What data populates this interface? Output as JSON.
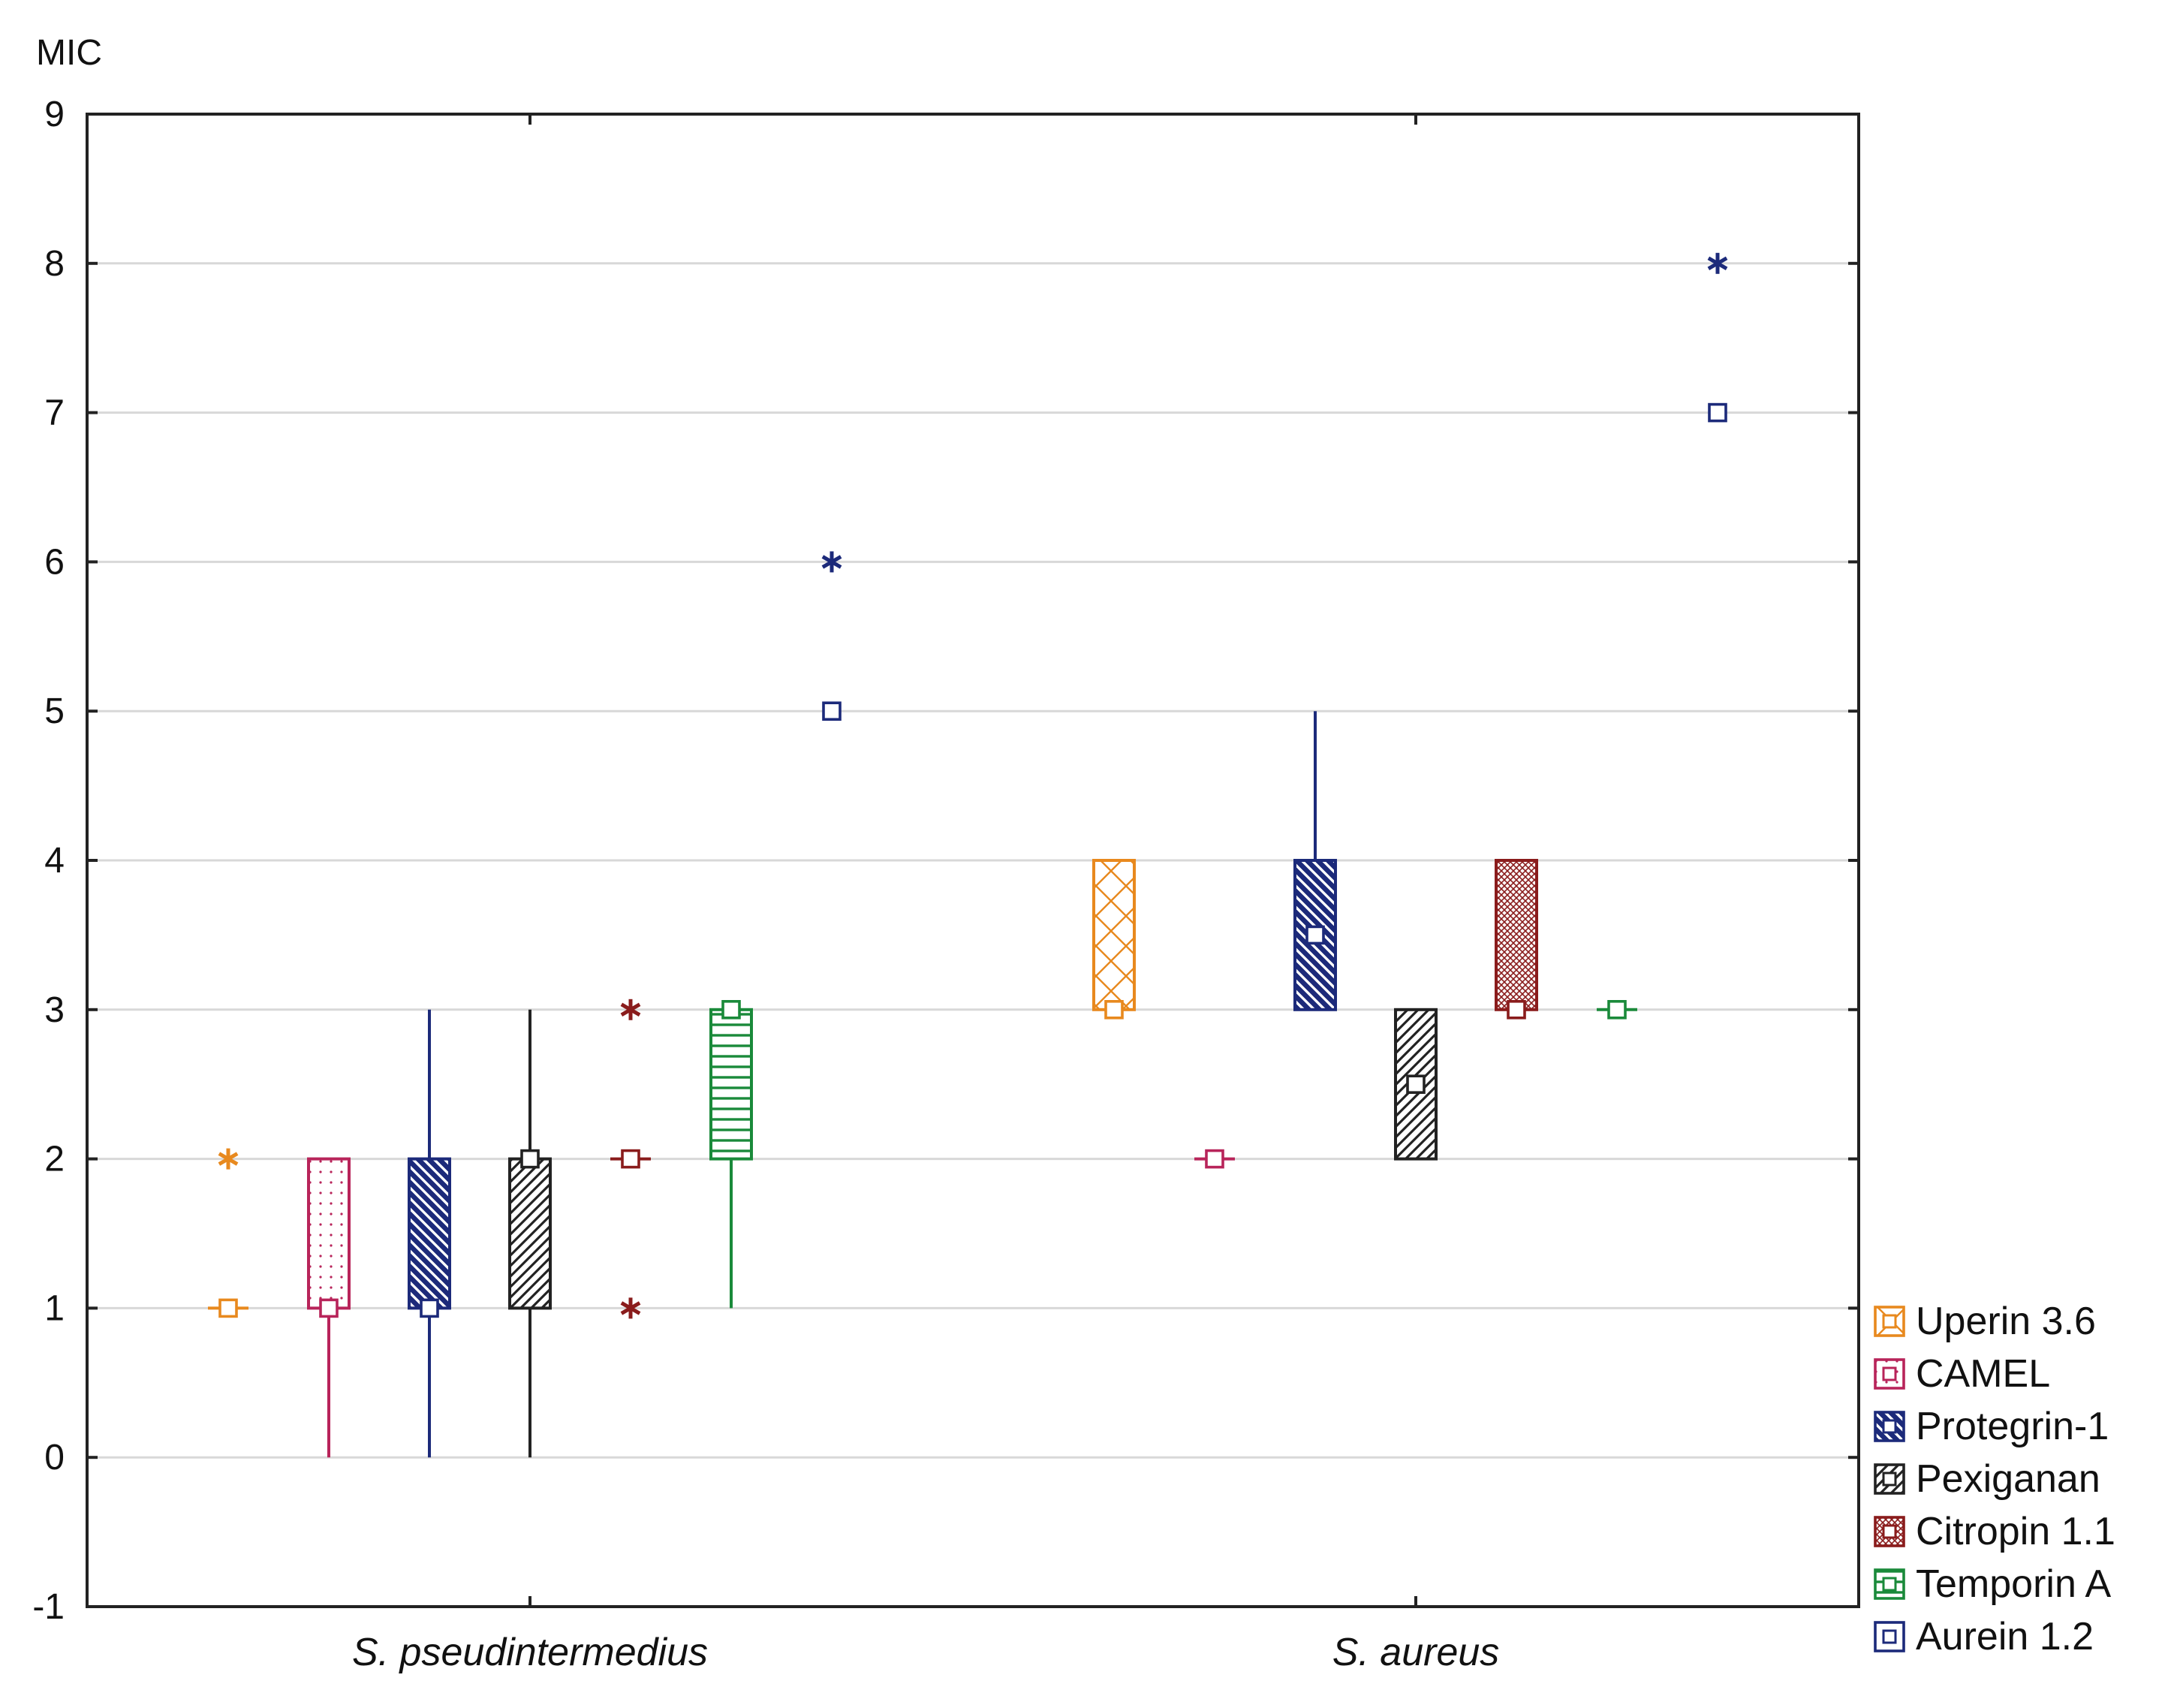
{
  "chart_data": {
    "type": "box",
    "ylabel": "MIC",
    "ylim": [
      -1,
      9
    ],
    "yticks": [
      "9",
      "8",
      "7",
      "6",
      "5",
      "4",
      "3",
      "2",
      "1",
      "0",
      "-1"
    ],
    "categories": [
      "S. pseudintermedius",
      "S. aureus"
    ],
    "series": [
      {
        "name": "Uperin 3.6",
        "color": "#e8891e",
        "pattern": "crosshatch",
        "stats": [
          {
            "q1": 1,
            "q3": 1,
            "median": 1,
            "min": 1,
            "max": 1,
            "extremes": [
              2
            ]
          },
          {
            "q1": 3,
            "q3": 4,
            "median": 3,
            "min": 3,
            "max": 4,
            "extremes": []
          }
        ]
      },
      {
        "name": "CAMEL",
        "color": "#b8245a",
        "pattern": "dots",
        "stats": [
          {
            "q1": 1,
            "q3": 2,
            "median": 1,
            "min": 0,
            "max": 2,
            "extremes": []
          },
          {
            "q1": 2,
            "q3": 2,
            "median": 2,
            "min": 2,
            "max": 2,
            "extremes": []
          }
        ]
      },
      {
        "name": "Protegrin-1",
        "color": "#1c2a7a",
        "pattern": "diag-back",
        "stats": [
          {
            "q1": 1,
            "q3": 2,
            "median": 1,
            "min": 0,
            "max": 3,
            "extremes": []
          },
          {
            "q1": 3,
            "q3": 4,
            "median": 3.5,
            "min": 3,
            "max": 5,
            "extremes": []
          }
        ]
      },
      {
        "name": "Pexiganan",
        "color": "#222222",
        "pattern": "diag-fwd",
        "stats": [
          {
            "q1": 1,
            "q3": 2,
            "median": 2,
            "min": 0,
            "max": 3,
            "extremes": []
          },
          {
            "q1": 2,
            "q3": 3,
            "median": 2.5,
            "min": 2,
            "max": 3,
            "extremes": []
          }
        ]
      },
      {
        "name": "Citropin 1.1",
        "color": "#8a1c1c",
        "pattern": "fine-cross",
        "stats": [
          {
            "q1": 2,
            "q3": 2,
            "median": 2,
            "min": 2,
            "max": 2,
            "extremes": [
              3,
              1
            ]
          },
          {
            "q1": 3,
            "q3": 4,
            "median": 3,
            "min": 3,
            "max": 4,
            "extremes": []
          }
        ]
      },
      {
        "name": "Temporin A",
        "color": "#1a8a3a",
        "pattern": "horizontal",
        "stats": [
          {
            "q1": 2,
            "q3": 3,
            "median": 3,
            "min": 1,
            "max": 3,
            "extremes": []
          },
          {
            "q1": 3,
            "q3": 3,
            "median": 3,
            "min": 3,
            "max": 3,
            "extremes": []
          }
        ]
      },
      {
        "name": "Aurein 1.2",
        "color": "#1c2a7a",
        "pattern": "none",
        "stats": [
          {
            "q1": 5,
            "q3": 5,
            "median": 5,
            "min": 5,
            "max": 5,
            "extremes": [
              6
            ]
          },
          {
            "q1": 7,
            "q3": 7,
            "median": 7,
            "min": 7,
            "max": 7,
            "extremes": [
              8
            ]
          }
        ]
      }
    ]
  }
}
